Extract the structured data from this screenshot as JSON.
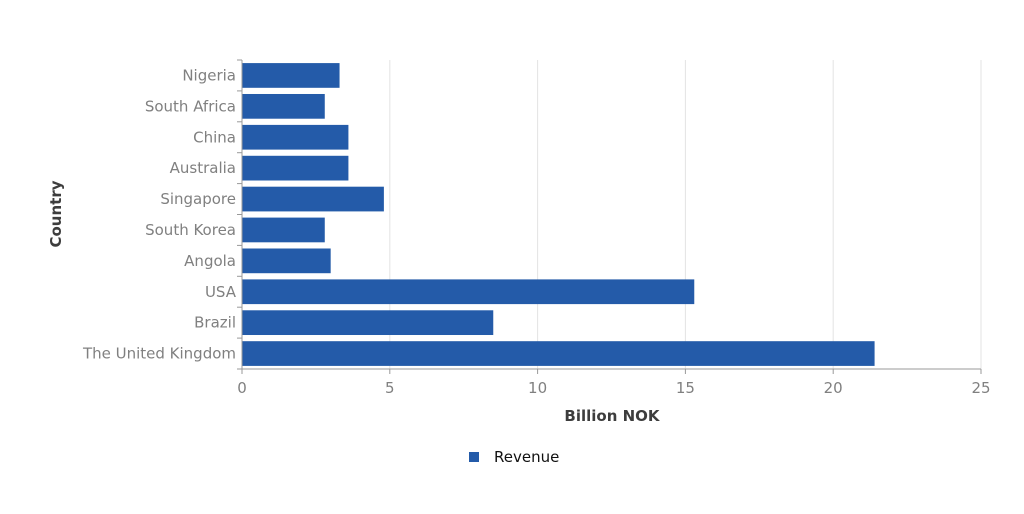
{
  "chart_data": {
    "type": "bar",
    "orientation": "horizontal",
    "categories": [
      "Nigeria",
      "South Africa",
      "China",
      "Australia",
      "Singapore",
      "South Korea",
      "Angola",
      "USA",
      "Brazil",
      "The United Kingdom"
    ],
    "series": [
      {
        "name": "Revenue",
        "color": "#245ba9",
        "values": [
          3.3,
          2.8,
          3.6,
          3.6,
          4.8,
          2.8,
          3.0,
          15.3,
          8.5,
          21.4
        ]
      }
    ],
    "xlabel": "Billion NOK",
    "ylabel": "Country",
    "xlim": [
      0,
      25
    ],
    "xticks": [
      0,
      5,
      10,
      15,
      20,
      25
    ],
    "grid": "vertical",
    "legend_position": "bottom-center",
    "colors": {
      "bar": "#245ba9",
      "grid": "#e3e3e3",
      "axis": "#999999",
      "tick_text": "#808080",
      "title_text": "#3d3d3d"
    }
  }
}
